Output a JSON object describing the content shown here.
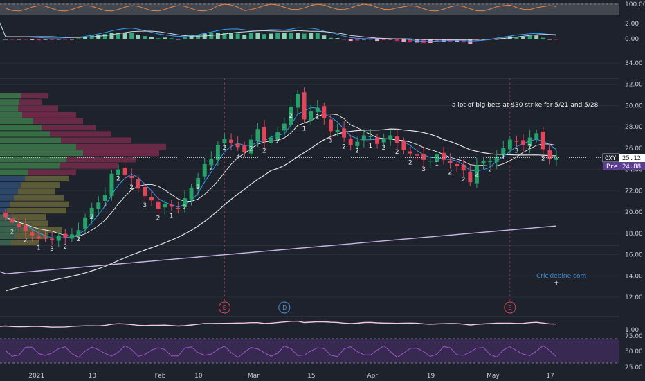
{
  "chart_data": {
    "type": "candlestick",
    "symbol": "OXY",
    "last_price": "25.12",
    "premarket_label": "Pre",
    "premarket_price": "24.88",
    "annotation": "a lot of big bets at $30 strike for 5/21 and 5/28",
    "watermark": "Cricklebine.com",
    "x_tick_labels": [
      "2021",
      "13",
      "Feb",
      "10",
      "Mar",
      "15",
      "Apr",
      "19",
      "May",
      "17"
    ],
    "x_tick_index": [
      4,
      13,
      23,
      29,
      37,
      46,
      55,
      64,
      73,
      82
    ],
    "y_ticks": [
      "12.00",
      "14.00",
      "16.00",
      "18.00",
      "20.00",
      "22.00",
      "24.00",
      "26.00",
      "28.00",
      "30.00",
      "32.00",
      "34.00"
    ],
    "ylim": [
      10.5,
      35
    ],
    "rsi_pane_ticks": [
      "100.00"
    ],
    "macd_pane_ticks": [
      "2.00",
      "0.00"
    ],
    "volume_pane_ticks": [
      "1.00"
    ],
    "stoch_pane_ticks": [
      "75.00",
      "50.00",
      "25.00"
    ],
    "event_markers": [
      {
        "index": 33,
        "label": "E",
        "color": "#e0455a"
      },
      {
        "index": 42,
        "label": "D",
        "color": "#3f8fd6"
      },
      {
        "index": 76,
        "label": "E",
        "color": "#e0455a"
      }
    ],
    "colors": {
      "up": "#26a269",
      "down": "#e0455a",
      "sma_short": "#2e9ff5",
      "sma_mid": "#e6e6e6",
      "sma_long": "#c9b6e6",
      "background": "#1e222d"
    },
    "close": [
      19.5,
      19.0,
      18.6,
      18.2,
      17.8,
      17.5,
      17.6,
      17.4,
      17.8,
      17.6,
      17.9,
      18.3,
      19.5,
      20.4,
      20.9,
      21.6,
      23.6,
      24.0,
      23.5,
      23.2,
      22.2,
      21.5,
      21.1,
      20.3,
      20.8,
      20.5,
      20.3,
      21.3,
      22.3,
      23.2,
      24.5,
      25.0,
      26.3,
      26.9,
      26.5,
      26.1,
      25.6,
      26.8,
      27.8,
      26.6,
      27.0,
      27.5,
      28.3,
      29.9,
      31.1,
      28.7,
      29.5,
      29.8,
      28.8,
      27.6,
      27.7,
      27.0,
      26.3,
      26.6,
      27.2,
      27.1,
      26.4,
      26.9,
      27.2,
      26.5,
      25.8,
      25.5,
      25.3,
      24.9,
      24.8,
      25.4,
      24.9,
      24.6,
      24.3,
      23.9,
      22.8,
      24.4,
      24.8,
      24.8,
      25.2,
      26.0,
      26.8,
      26.6,
      26.3,
      27.0,
      27.4,
      25.9,
      25.0,
      25.1
    ]
  },
  "right_tags": {
    "symbol_tag": "OXY",
    "last_tag": "25.12",
    "pre_tag": "Pre",
    "pre_value": "24.88"
  }
}
